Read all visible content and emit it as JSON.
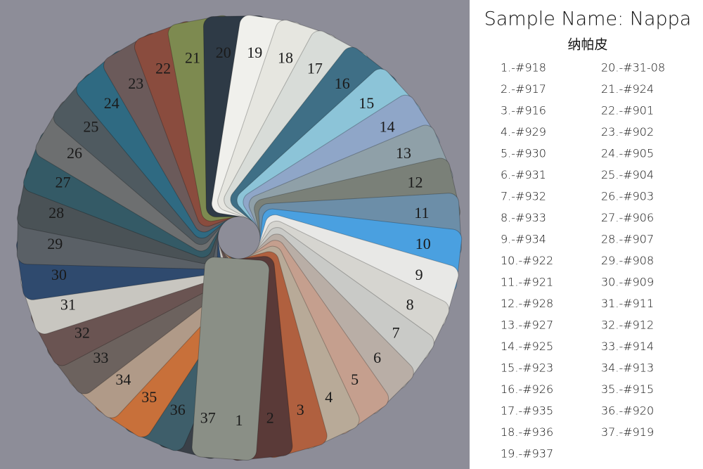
{
  "header": {
    "title": "Sample Name: Nappa",
    "subtitle": "纳帕皮"
  },
  "swatches": [
    1,
    2,
    3,
    4,
    5,
    6,
    7,
    8,
    9,
    10,
    11,
    12,
    13,
    14,
    15,
    16,
    17,
    18,
    19,
    20,
    21,
    22,
    23,
    24,
    25,
    26,
    27,
    28,
    29,
    30,
    31,
    32,
    33,
    34,
    35,
    36,
    37
  ],
  "codes": [
    "1.-#918",
    "2.-#917",
    "3.-#916",
    "4.-#929",
    "5.-#930",
    "6.-#931",
    "7.-#932",
    "8.-#933",
    "9.-#934",
    "10.-#922",
    "11.-#921",
    "12.-#928",
    "13.-#927",
    "14.-#925",
    "15.-#923",
    "16.-#926",
    "17.-#935",
    "18.-#936",
    "19.-#937",
    "20.-#31-08",
    "21.-#924",
    "22.-#901",
    "23.-#902",
    "24.-#905",
    "25.-#904",
    "26.-#903",
    "27.-#906",
    "28.-#907",
    "29.-#908",
    "30.-#909",
    "31.-#911",
    "32.-#912",
    "33.-#914",
    "34.-#913",
    "35.-#915",
    "36.-#920",
    "37.-#919"
  ]
}
